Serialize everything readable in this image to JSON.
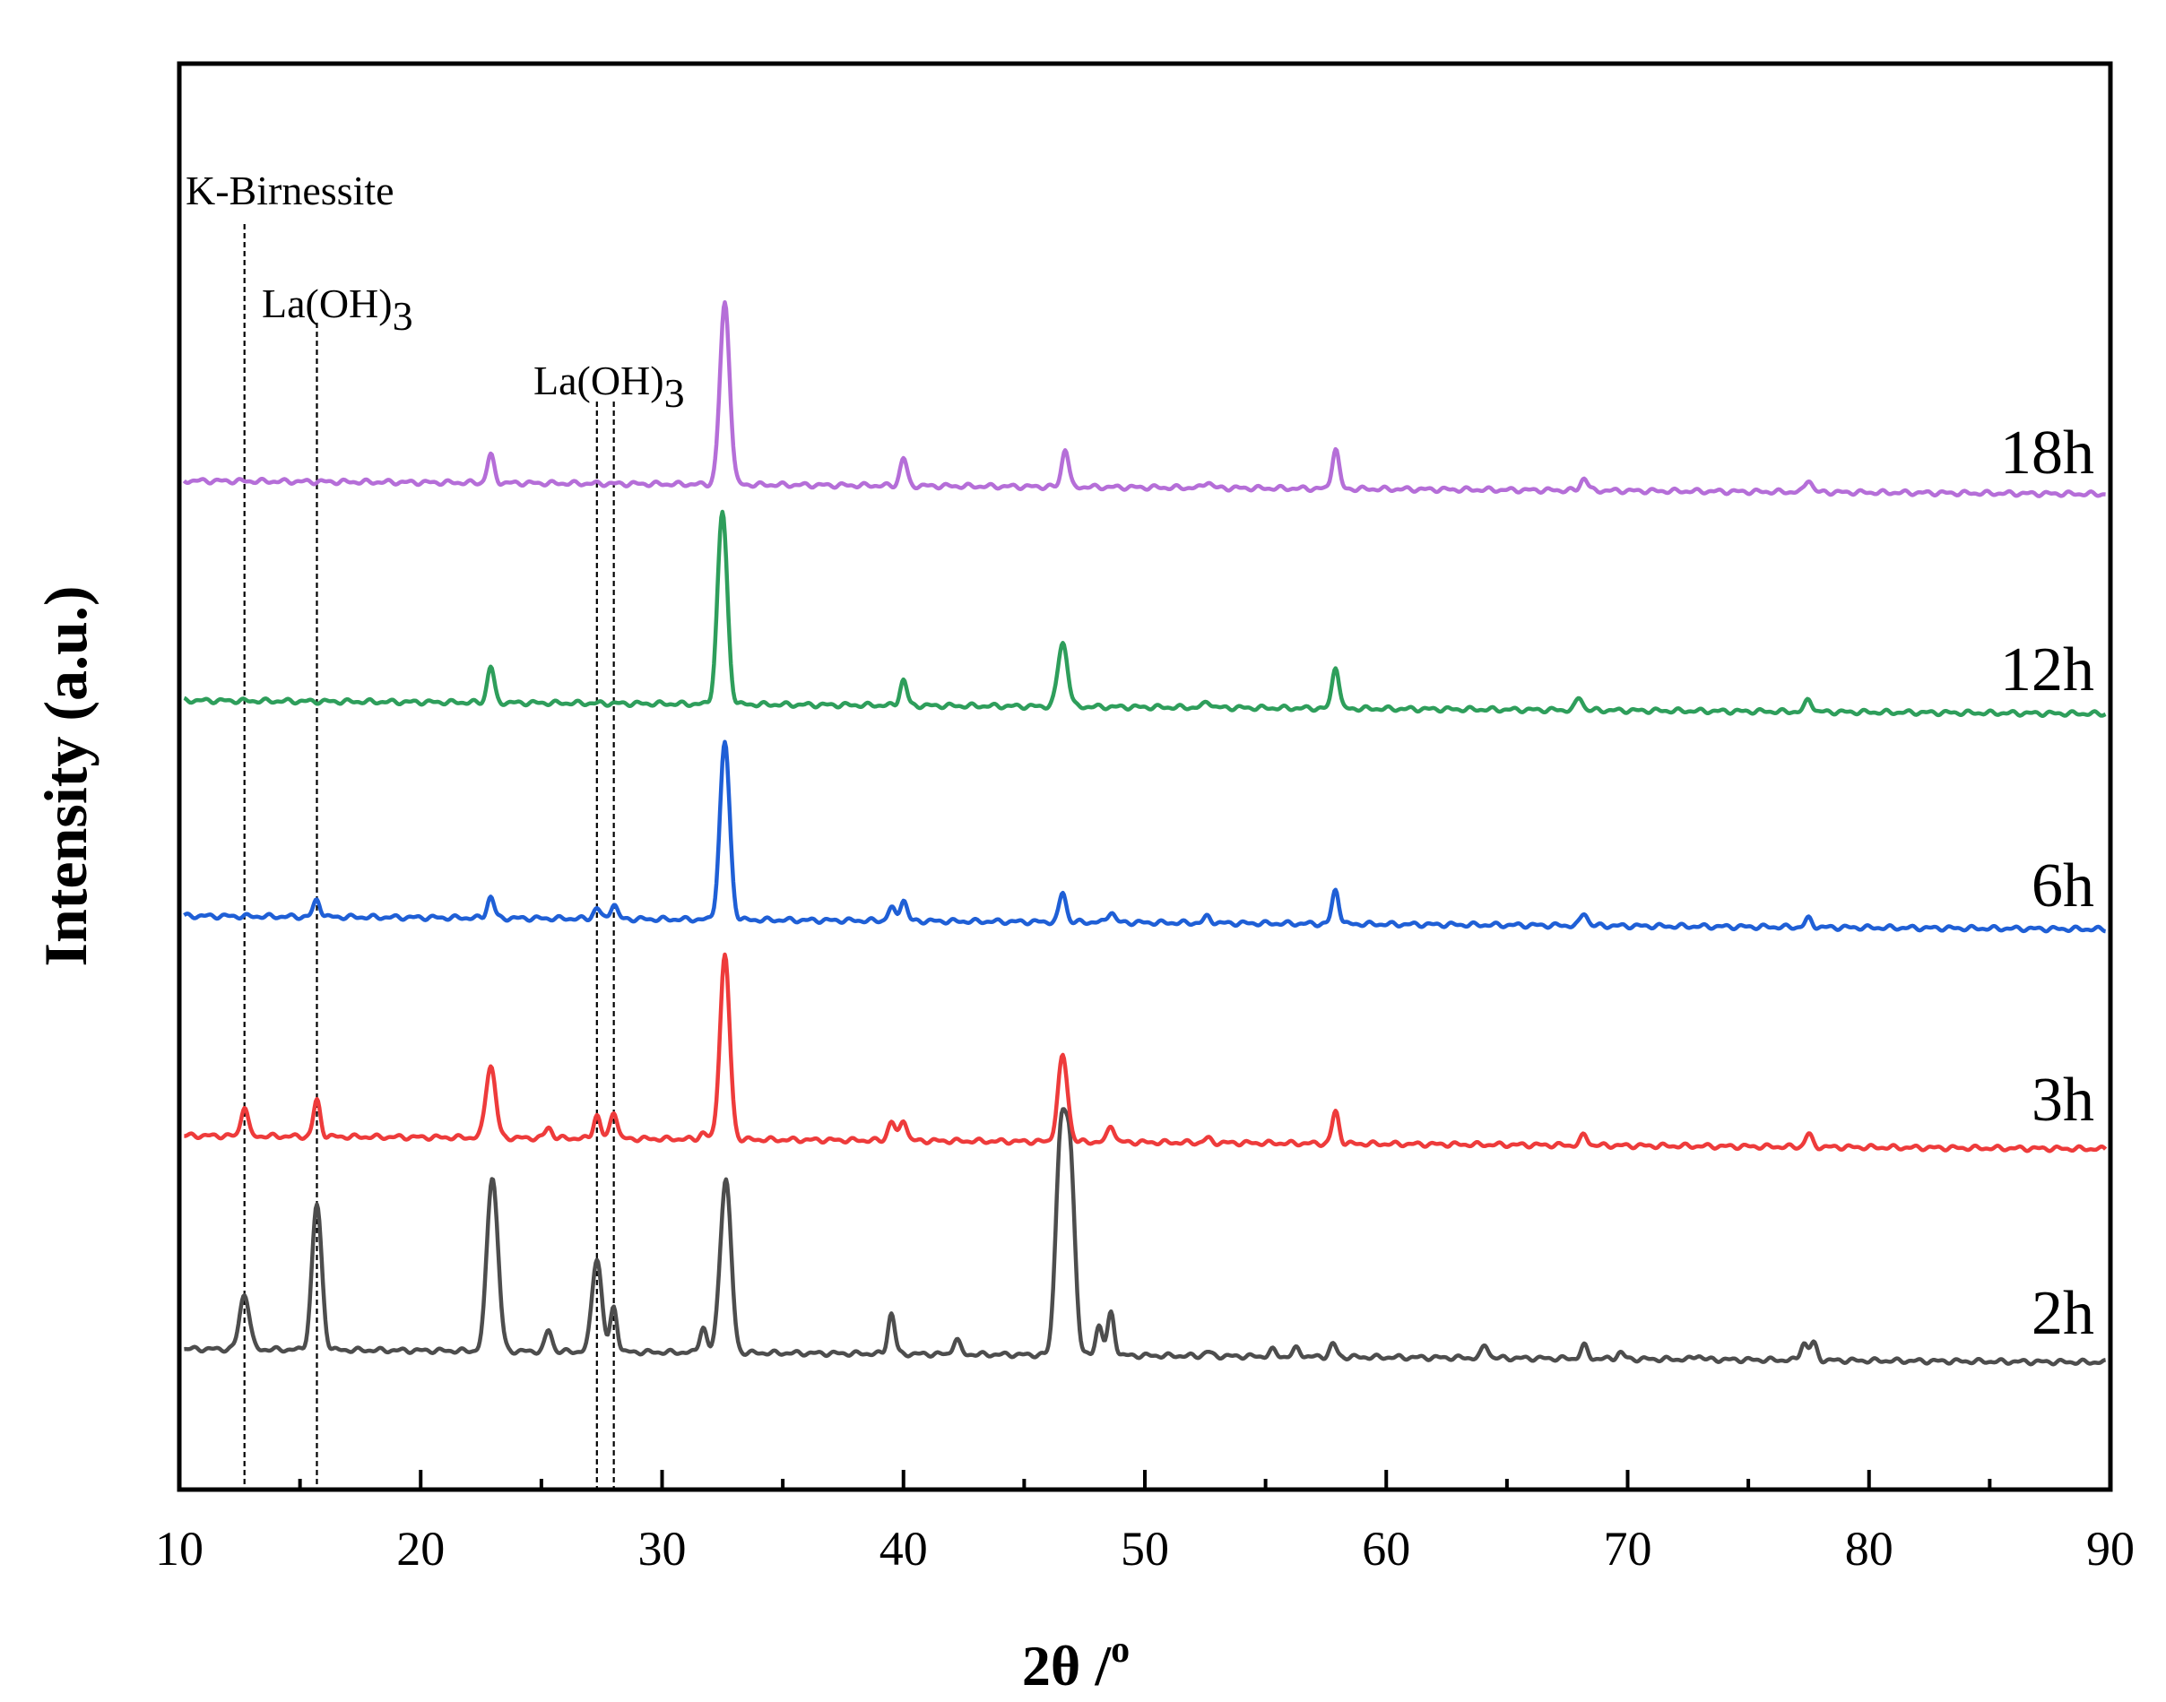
{
  "chart_data": {
    "type": "line",
    "xlabel": "2θ /",
    "xlabel_superscript": "o",
    "ylabel": "Intensity (a.u.)",
    "xlim": [
      10,
      90
    ],
    "xticks": [
      10,
      20,
      30,
      40,
      50,
      60,
      70,
      80,
      90
    ],
    "y_ticks_shown": false,
    "grid": false,
    "legend": "none",
    "annotations": [
      {
        "label": "K-Birnessite",
        "x": 12.7
      },
      {
        "label": "La(OH)",
        "sub": "3",
        "x": 15.7
      },
      {
        "label": "La(OH)",
        "sub": "3",
        "x": [
          27.3,
          28.0
        ]
      }
    ],
    "series": [
      {
        "name": "2h",
        "color": "#4d4d4d",
        "baseline": 0,
        "peaks": [
          {
            "x": 12.7,
            "h": 26
          },
          {
            "x": 15.7,
            "h": 68
          },
          {
            "x": 22.9,
            "h": 57
          },
          {
            "x": 23.1,
            "h": 35
          },
          {
            "x": 25.3,
            "h": 10
          },
          {
            "x": 27.3,
            "h": 44
          },
          {
            "x": 28.0,
            "h": 21
          },
          {
            "x": 31.7,
            "h": 12
          },
          {
            "x": 32.5,
            "h": 32
          },
          {
            "x": 32.7,
            "h": 59
          },
          {
            "x": 39.5,
            "h": 19
          },
          {
            "x": 42.2,
            "h": 7
          },
          {
            "x": 46.5,
            "h": 96
          },
          {
            "x": 46.9,
            "h": 91
          },
          {
            "x": 48.1,
            "h": 14
          },
          {
            "x": 48.6,
            "h": 20
          },
          {
            "x": 52.6,
            "h": 2
          },
          {
            "x": 55.3,
            "h": 3
          },
          {
            "x": 56.3,
            "h": 4
          },
          {
            "x": 57.8,
            "h": 6
          },
          {
            "x": 64.1,
            "h": 6
          },
          {
            "x": 68.2,
            "h": 6
          },
          {
            "x": 69.7,
            "h": 3
          },
          {
            "x": 72.9,
            "h": 2
          },
          {
            "x": 77.3,
            "h": 8
          },
          {
            "x": 77.7,
            "h": 8
          }
        ]
      },
      {
        "name": "3h",
        "color": "#ee3b3b",
        "baseline": 100,
        "peaks": [
          {
            "x": 12.7,
            "h": 14
          },
          {
            "x": 15.7,
            "h": 17
          },
          {
            "x": 22.9,
            "h": 34
          },
          {
            "x": 25.3,
            "h": 5
          },
          {
            "x": 27.3,
            "h": 11
          },
          {
            "x": 28.0,
            "h": 13
          },
          {
            "x": 31.7,
            "h": 3
          },
          {
            "x": 32.6,
            "h": 86
          },
          {
            "x": 39.5,
            "h": 9
          },
          {
            "x": 40.0,
            "h": 10
          },
          {
            "x": 46.6,
            "h": 40
          },
          {
            "x": 48.6,
            "h": 8
          },
          {
            "x": 52.6,
            "h": 2
          },
          {
            "x": 57.9,
            "h": 15
          },
          {
            "x": 68.2,
            "h": 5
          },
          {
            "x": 77.5,
            "h": 6
          }
        ]
      },
      {
        "name": "6h",
        "color": "#1f5fd6",
        "baseline": 203,
        "peaks": [
          {
            "x": 15.7,
            "h": 8
          },
          {
            "x": 22.9,
            "h": 10
          },
          {
            "x": 27.3,
            "h": 5
          },
          {
            "x": 28.0,
            "h": 7
          },
          {
            "x": 32.6,
            "h": 83
          },
          {
            "x": 39.5,
            "h": 6
          },
          {
            "x": 40.0,
            "h": 10
          },
          {
            "x": 46.6,
            "h": 14
          },
          {
            "x": 48.6,
            "h": 5
          },
          {
            "x": 52.6,
            "h": 3
          },
          {
            "x": 57.9,
            "h": 16
          },
          {
            "x": 68.2,
            "h": 6
          },
          {
            "x": 77.5,
            "h": 4
          }
        ]
      },
      {
        "name": "12h",
        "color": "#2e9e5b",
        "baseline": 304,
        "peaks": [
          {
            "x": 22.9,
            "h": 17
          },
          {
            "x": 32.5,
            "h": 90
          },
          {
            "x": 40.0,
            "h": 12
          },
          {
            "x": 46.6,
            "h": 30
          },
          {
            "x": 52.6,
            "h": 3
          },
          {
            "x": 57.9,
            "h": 20
          },
          {
            "x": 68.0,
            "h": 6
          },
          {
            "x": 77.5,
            "h": 6
          }
        ]
      },
      {
        "name": "18h",
        "color": "#b56ed8",
        "baseline": 407,
        "peaks": [
          {
            "x": 22.9,
            "h": 13
          },
          {
            "x": 32.6,
            "h": 85
          },
          {
            "x": 40.0,
            "h": 13
          },
          {
            "x": 46.7,
            "h": 18
          },
          {
            "x": 52.6,
            "h": 3
          },
          {
            "x": 57.9,
            "h": 19
          },
          {
            "x": 68.2,
            "h": 6
          },
          {
            "x": 77.5,
            "h": 6
          }
        ]
      }
    ]
  }
}
